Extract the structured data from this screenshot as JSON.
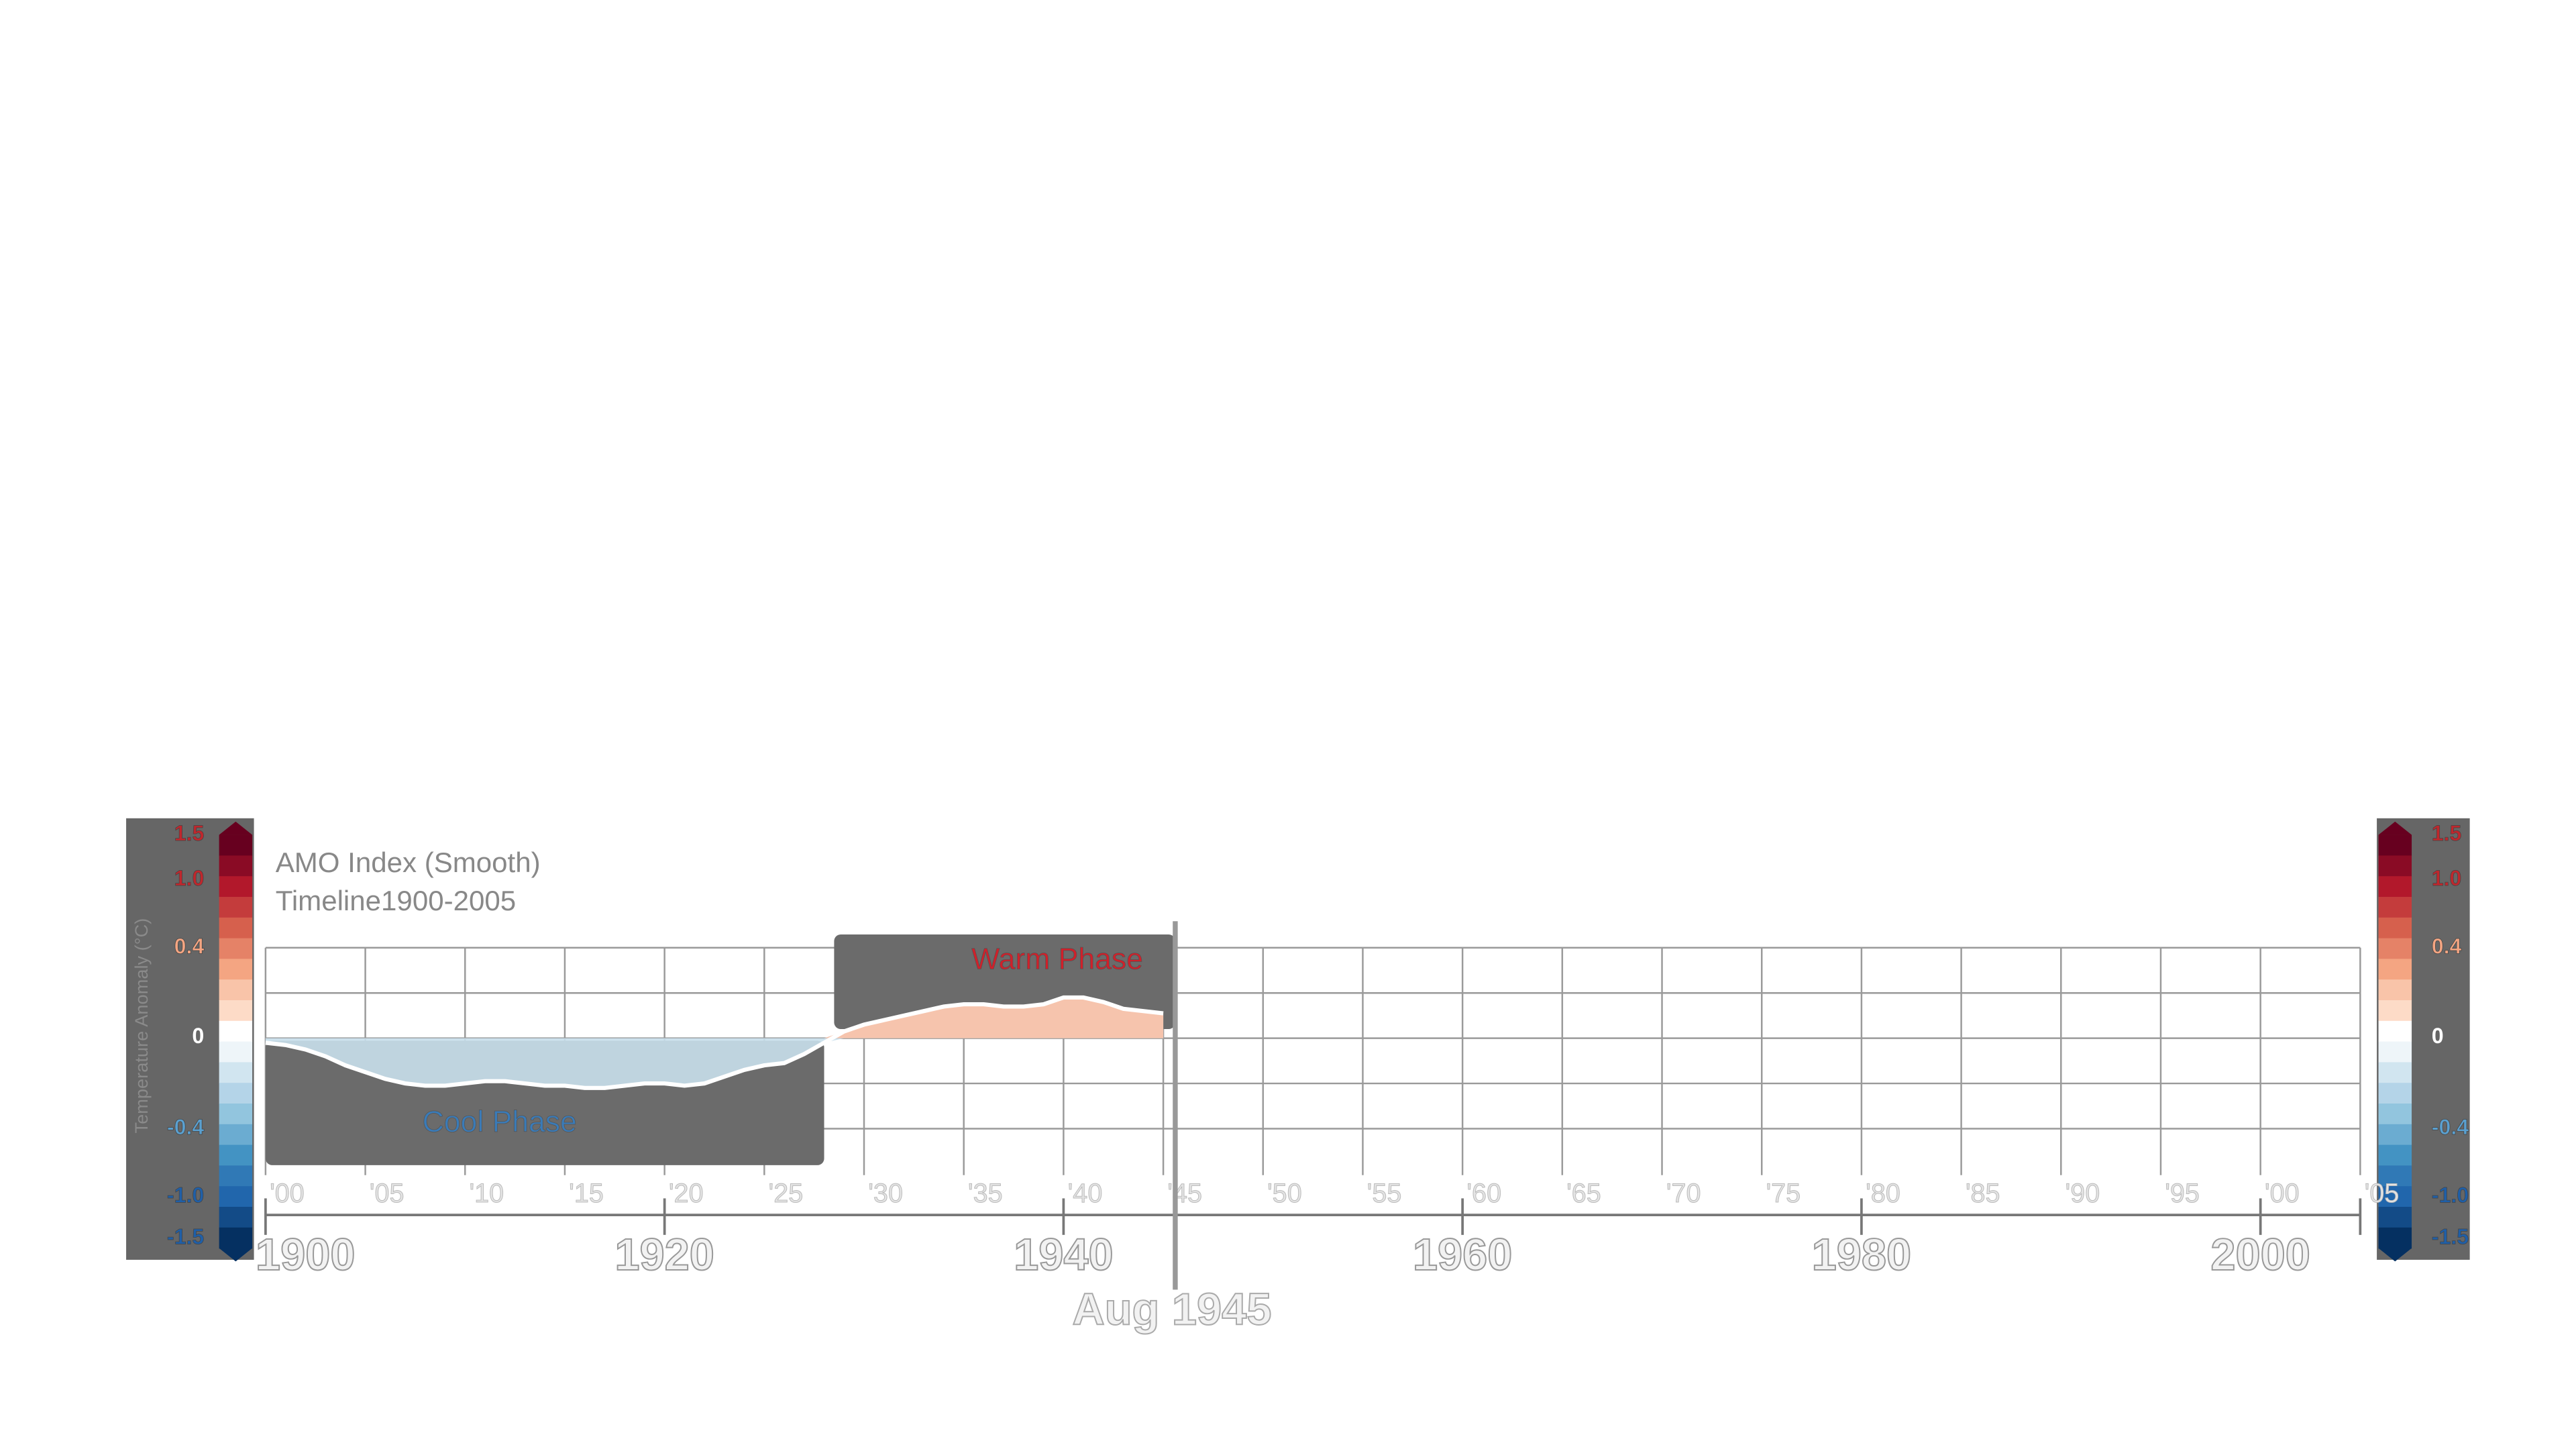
{
  "chart_data": {
    "type": "area",
    "title": "AMO Index (Smooth)",
    "subtitle": "Timeline1900-2005",
    "x": [
      1900,
      1901,
      1902,
      1903,
      1904,
      1905,
      1906,
      1907,
      1908,
      1909,
      1910,
      1911,
      1912,
      1913,
      1914,
      1915,
      1916,
      1917,
      1918,
      1919,
      1920,
      1921,
      1922,
      1923,
      1924,
      1925,
      1926,
      1927,
      1928,
      1929,
      1930,
      1931,
      1932,
      1933,
      1934,
      1935,
      1936,
      1937,
      1938,
      1939,
      1940,
      1941,
      1942,
      1943,
      1944,
      1945
    ],
    "values": [
      -0.02,
      -0.03,
      -0.05,
      -0.08,
      -0.12,
      -0.15,
      -0.18,
      -0.2,
      -0.21,
      -0.21,
      -0.2,
      -0.19,
      -0.19,
      -0.2,
      -0.21,
      -0.21,
      -0.22,
      -0.22,
      -0.21,
      -0.2,
      -0.2,
      -0.21,
      -0.2,
      -0.17,
      -0.14,
      -0.12,
      -0.11,
      -0.07,
      -0.02,
      0.03,
      0.06,
      0.08,
      0.1,
      0.12,
      0.14,
      0.15,
      0.15,
      0.14,
      0.14,
      0.15,
      0.18,
      0.18,
      0.16,
      0.13,
      0.12,
      0.11
    ],
    "positive_color": "#f6c4ad",
    "negative_color": "#c9e0ec",
    "xlim": [
      1900,
      2005
    ],
    "ylim": [
      -0.4,
      0.4
    ],
    "yticks": [
      -0.4,
      -0.2,
      0,
      0.2,
      0.4
    ],
    "grid": true,
    "xticks": [
      {
        "value": 1900,
        "label": "'00"
      },
      {
        "value": 1905,
        "label": "'05"
      },
      {
        "value": 1910,
        "label": "'10"
      },
      {
        "value": 1915,
        "label": "'15"
      },
      {
        "value": 1920,
        "label": "'20"
      },
      {
        "value": 1925,
        "label": "'25"
      },
      {
        "value": 1930,
        "label": "'30"
      },
      {
        "value": 1935,
        "label": "'35"
      },
      {
        "value": 1940,
        "label": "'40"
      },
      {
        "value": 1945,
        "label": "'45"
      },
      {
        "value": 1950,
        "label": "'50"
      },
      {
        "value": 1955,
        "label": "'55"
      },
      {
        "value": 1960,
        "label": "'60"
      },
      {
        "value": 1965,
        "label": "'65"
      },
      {
        "value": 1970,
        "label": "'70"
      },
      {
        "value": 1975,
        "label": "'75"
      },
      {
        "value": 1980,
        "label": "'80"
      },
      {
        "value": 1985,
        "label": "'85"
      },
      {
        "value": 1990,
        "label": "'90"
      },
      {
        "value": 1995,
        "label": "'95"
      },
      {
        "value": 2000,
        "label": "'00"
      },
      {
        "value": 2005,
        "label": "'05"
      }
    ],
    "major_xticks": [
      1900,
      1920,
      1940,
      1960,
      1980,
      2000
    ],
    "phases": [
      {
        "label": "Cool Phase",
        "start": 1900,
        "end": 1928,
        "color": "#3a7bb8"
      },
      {
        "label": "Warm Phase",
        "start": 1928.5,
        "end": 1945.6,
        "color": "#d0202a"
      }
    ],
    "current": {
      "label": "Aug 1945",
      "value": 1945.6
    },
    "colorbar": {
      "label": "Temperature Anomaly (°C)",
      "ticks": [
        {
          "value": 1.5,
          "label": "1.5"
        },
        {
          "value": 1.0,
          "label": "1.0"
        },
        0.4,
        0,
        -0.4,
        {
          "value": -1.0,
          "label": "-1.0"
        },
        -1.5
      ],
      "colors": [
        "#67001f",
        "#8a0b25",
        "#b2182b",
        "#c43c3c",
        "#d6604d",
        "#e58267",
        "#f4a582",
        "#f9c4a9",
        "#fddbc7",
        "#ffffff",
        "#eef5f9",
        "#d1e5f0",
        "#b4d4e8",
        "#92c5de",
        "#6bacd1",
        "#4393c3",
        "#3079b6",
        "#2166ac",
        "#134b87",
        "#053061"
      ]
    }
  }
}
